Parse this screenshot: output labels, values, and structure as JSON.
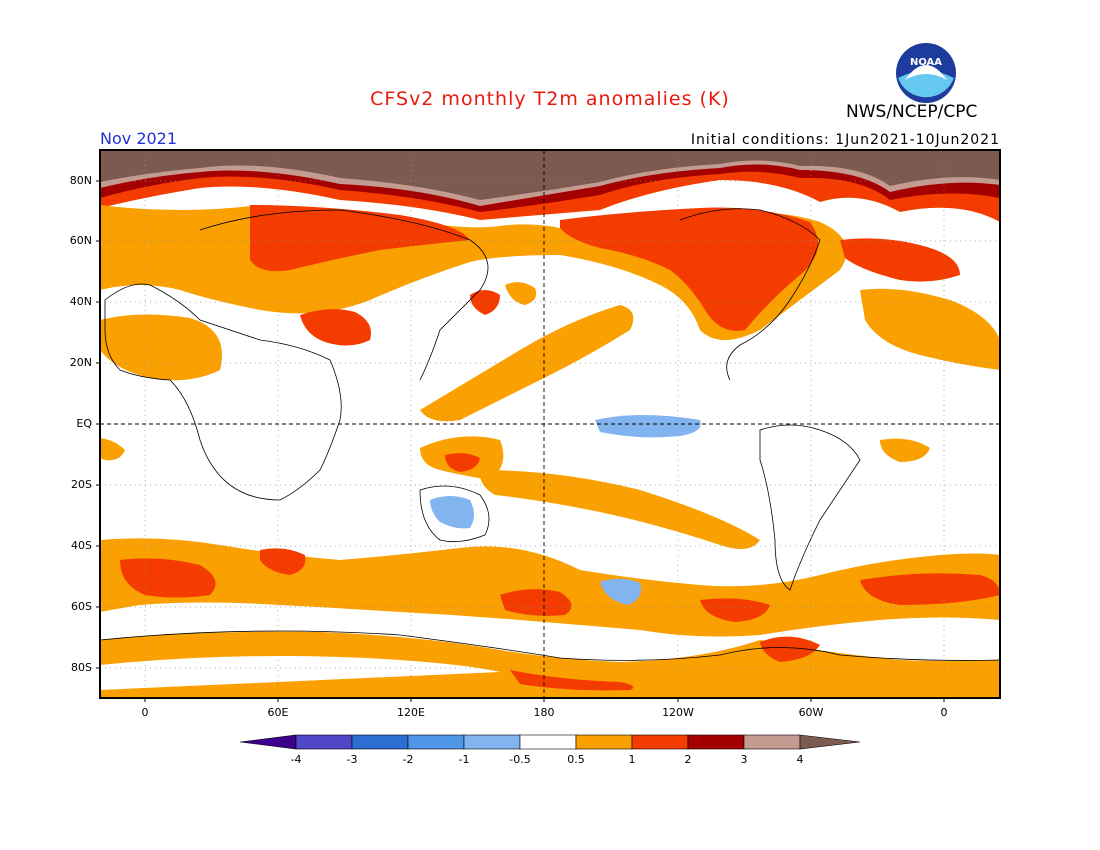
{
  "header": {
    "title": "CFSv2 monthly T2m anomalies (K)",
    "agency": "NWS/NCEP/CPC",
    "month": "Nov 2021",
    "initial_conditions": "Initial conditions: 1Jun2021-10Jun2021",
    "logo_text": "NOAA"
  },
  "colors": {
    "title": "#e8190e",
    "month": "#1f32d6",
    "frame": "#000000",
    "anomaly_n4": "#3c008c",
    "anomaly_n3": "#5046c8",
    "anomaly_n2": "#2d6ed2",
    "anomaly_n1": "#5096e6",
    "anomaly_n05": "#82b4f0",
    "anomaly_neutral": "#ffffff",
    "anomaly_p05": "#faa000",
    "anomaly_p1": "#f53c00",
    "anomaly_p2": "#a50000",
    "anomaly_p3": "#c39b91",
    "anomaly_p4": "#7d5a50"
  },
  "map": {
    "y_ticks": [
      "80N",
      "60N",
      "40N",
      "20N",
      "EQ",
      "20S",
      "40S",
      "60S",
      "80S"
    ],
    "x_ticks": [
      "0",
      "60E",
      "120E",
      "180",
      "120W",
      "60W",
      "0"
    ],
    "x_range": [
      "20W",
      "20E"
    ],
    "grid": "dotted"
  },
  "colorbar": {
    "labels": [
      "-4",
      "-3",
      "-2",
      "-1",
      "-0.5",
      "0.5",
      "1",
      "2",
      "3",
      "4"
    ],
    "colors": [
      "#3c008c",
      "#5046c8",
      "#2d6ed2",
      "#5096e6",
      "#82b4f0",
      "#ffffff",
      "#faa000",
      "#f53c00",
      "#a50000",
      "#c39b91",
      "#7d5a50"
    ]
  }
}
